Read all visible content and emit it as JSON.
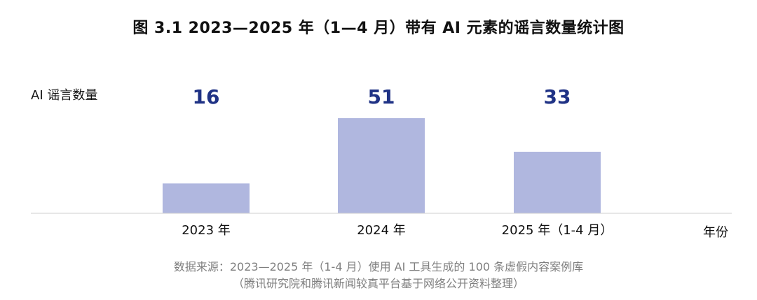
{
  "chart_data": {
    "type": "bar",
    "title": "图 3.1 2023—2025 年（1—4 月）带有 AI 元素的谣言数量统计图",
    "ylabel": "AI 谣言数量",
    "xlabel": "年份",
    "categories": [
      "2023 年",
      "2024 年",
      "2025 年（1-4 月）"
    ],
    "values": [
      16,
      51,
      33
    ],
    "ylim": [
      0,
      60
    ],
    "grid": false,
    "legend": "none",
    "bar_color": "#b0b7df",
    "label_color": "#1f3285"
  },
  "source": {
    "line1": "数据来源：2023—2025 年（1-4 月）使用 AI 工具生成的 100 条虚假内容案例库",
    "line2": "（腾讯研究院和腾讯新闻较真平台基于网络公开资料整理）"
  }
}
